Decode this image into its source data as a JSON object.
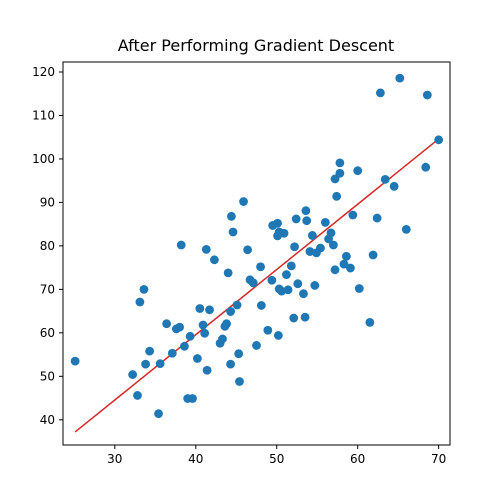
{
  "chart_data": {
    "type": "scatter",
    "title": "After Performing Gradient Descent",
    "xlabel": "",
    "ylabel": "",
    "xlim": [
      23.6,
      71.4
    ],
    "ylim": [
      34.2,
      122.3
    ],
    "xticks": [
      30,
      40,
      50,
      60,
      70
    ],
    "yticks": [
      40,
      50,
      60,
      70,
      80,
      90,
      100,
      110,
      120
    ],
    "grid": false,
    "colors": {
      "points": "#1f77b4",
      "line": "#d62728",
      "axes": "#000000",
      "background": "#ffffff"
    },
    "series": [
      {
        "type": "scatter",
        "points": [
          [
            25.1,
            53.5
          ],
          [
            32.2,
            50.4
          ],
          [
            32.8,
            45.6
          ],
          [
            33.1,
            67.1
          ],
          [
            33.6,
            70.0
          ],
          [
            33.8,
            52.8
          ],
          [
            34.3,
            55.8
          ],
          [
            35.4,
            41.4
          ],
          [
            35.6,
            52.9
          ],
          [
            36.4,
            62.1
          ],
          [
            37.1,
            55.3
          ],
          [
            37.6,
            60.9
          ],
          [
            38.0,
            61.3
          ],
          [
            38.2,
            80.2
          ],
          [
            38.6,
            56.9
          ],
          [
            39.0,
            44.9
          ],
          [
            39.3,
            59.2
          ],
          [
            39.6,
            44.9
          ],
          [
            40.2,
            54.1
          ],
          [
            40.5,
            65.6
          ],
          [
            40.9,
            61.8
          ],
          [
            41.1,
            59.9
          ],
          [
            41.3,
            79.2
          ],
          [
            41.4,
            51.4
          ],
          [
            41.7,
            65.3
          ],
          [
            42.3,
            76.8
          ],
          [
            43.0,
            57.6
          ],
          [
            43.3,
            58.6
          ],
          [
            43.6,
            61.5
          ],
          [
            43.8,
            62.1
          ],
          [
            44.0,
            73.8
          ],
          [
            44.3,
            52.8
          ],
          [
            44.3,
            64.9
          ],
          [
            44.4,
            86.8
          ],
          [
            44.6,
            83.2
          ],
          [
            45.1,
            66.4
          ],
          [
            45.3,
            55.2
          ],
          [
            45.4,
            48.8
          ],
          [
            45.9,
            90.2
          ],
          [
            46.4,
            79.1
          ],
          [
            46.7,
            72.2
          ],
          [
            47.1,
            71.5
          ],
          [
            47.5,
            57.1
          ],
          [
            48.0,
            75.2
          ],
          [
            48.1,
            66.3
          ],
          [
            48.9,
            60.6
          ],
          [
            49.4,
            72.1
          ],
          [
            49.5,
            84.7
          ],
          [
            50.1,
            82.3
          ],
          [
            50.1,
            85.2
          ],
          [
            50.2,
            59.4
          ],
          [
            50.3,
            70.1
          ],
          [
            50.3,
            83.2
          ],
          [
            50.6,
            69.6
          ],
          [
            50.9,
            82.9
          ],
          [
            51.2,
            73.4
          ],
          [
            51.4,
            69.9
          ],
          [
            51.8,
            75.4
          ],
          [
            52.1,
            63.4
          ],
          [
            52.2,
            79.8
          ],
          [
            52.4,
            86.2
          ],
          [
            52.6,
            71.3
          ],
          [
            53.3,
            69.0
          ],
          [
            53.5,
            63.6
          ],
          [
            53.7,
            85.8
          ],
          [
            53.6,
            88.1
          ],
          [
            54.1,
            78.7
          ],
          [
            54.4,
            82.4
          ],
          [
            54.7,
            70.9
          ],
          [
            54.9,
            78.4
          ],
          [
            55.4,
            79.5
          ],
          [
            56.0,
            85.4
          ],
          [
            56.4,
            81.6
          ],
          [
            56.7,
            83.0
          ],
          [
            57.0,
            80.2
          ],
          [
            57.2,
            74.5
          ],
          [
            57.4,
            91.4
          ],
          [
            57.2,
            95.4
          ],
          [
            57.8,
            96.7
          ],
          [
            57.8,
            99.1
          ],
          [
            58.3,
            75.8
          ],
          [
            58.6,
            77.6
          ],
          [
            59.1,
            74.9
          ],
          [
            59.4,
            87.1
          ],
          [
            60.0,
            97.3
          ],
          [
            60.2,
            70.2
          ],
          [
            61.5,
            62.4
          ],
          [
            61.9,
            77.9
          ],
          [
            62.4,
            86.4
          ],
          [
            62.8,
            115.2
          ],
          [
            63.4,
            95.3
          ],
          [
            64.5,
            93.7
          ],
          [
            65.2,
            118.6
          ],
          [
            66.0,
            83.8
          ],
          [
            68.4,
            98.1
          ],
          [
            68.6,
            114.7
          ],
          [
            70.0,
            104.4
          ]
        ]
      },
      {
        "type": "line",
        "points": [
          [
            25.1,
            37.2
          ],
          [
            70.0,
            104.6
          ]
        ]
      }
    ]
  }
}
